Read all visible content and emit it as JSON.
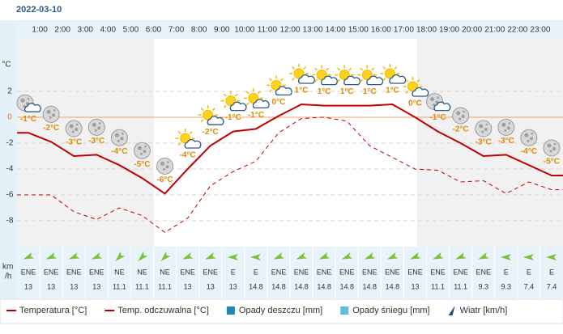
{
  "chart_data": {
    "type": "line",
    "title": "2022-03-10",
    "categories": [
      null,
      "1:00",
      "2:00",
      "3:00",
      "4:00",
      "5:00",
      "6:00",
      "7:00",
      "8:00",
      "9:00",
      "10:00",
      "11:00",
      "12:00",
      "13:00",
      "14:00",
      "15:00",
      "16:00",
      "17:00",
      "18:00",
      "19:00",
      "20:00",
      "21:00",
      "22:00",
      "23:00"
    ],
    "icons": [
      "moon-cloud",
      "moon",
      "moon",
      "moon",
      "moon",
      "moon",
      "moon",
      "sun-cloud",
      "sun-cloud",
      "sun-cloud",
      "sun-cloud",
      "sun-cloud",
      "sun-cloud",
      "sun-cloud",
      "sun-cloud",
      "sun-cloud",
      "sun-cloud",
      "sun-cloud",
      "moon-cloud",
      "moon",
      "moon",
      "moon",
      "moon",
      "moon"
    ],
    "series": [
      {
        "name": "Temperatura [°C]",
        "color": "#c00000",
        "values": [
          -1.2,
          -1.9,
          -3.0,
          -2.9,
          -3.7,
          -4.7,
          -5.9,
          -4.0,
          -2.2,
          -1.1,
          -0.9,
          0.1,
          1.0,
          0.9,
          0.9,
          0.9,
          1.0,
          0.0,
          -1.1,
          -2.0,
          -3.0,
          -2.9,
          -3.7,
          -4.5
        ],
        "value_labels": [
          "-1°C",
          "-2°C",
          "-3°C",
          "-3°C",
          "-4°C",
          "-5°C",
          "-6°C",
          "-4°C",
          "-2°C",
          "-1°C",
          "-1°C",
          "0°C",
          "1°C",
          "1°C",
          "1°C",
          "1°C",
          "1°C",
          "0°C",
          "-1°C",
          "-2°C",
          "-3°C",
          "-3°C",
          "-4°C",
          "-5°C"
        ]
      },
      {
        "name": "Temp. odczuwalna [°C]",
        "color": "#c00000",
        "dashed": true,
        "values": [
          -6.0,
          -6.0,
          -7.3,
          -7.9,
          -7.0,
          -7.6,
          -8.9,
          -7.8,
          -5.3,
          -4.2,
          -3.4,
          -1.2,
          -0.1,
          0.0,
          -0.3,
          -2.2,
          -3.1,
          -4.0,
          -4.1,
          -5.0,
          -4.9,
          -5.9,
          -5.0,
          -5.6
        ]
      }
    ],
    "legend_extra": [
      {
        "name": "Opady deszczu [mm]",
        "color": "#1a8ab8"
      },
      {
        "name": "Opady śniegu [mm]",
        "color": "#5cbcdc"
      },
      {
        "name": "Wiatr [km/h]",
        "color": "#2a4a6a"
      }
    ],
    "y_unit": "°C",
    "ylim": [
      -10,
      7.5
    ],
    "yticks": [
      -8,
      -6,
      -4,
      -2,
      0,
      2
    ],
    "grid": true,
    "wind": {
      "unit": [
        "km",
        "/h"
      ],
      "directions": [
        "ENE",
        "ENE",
        "ENE",
        "ENE",
        "NE",
        "NE",
        "NE",
        "ENE",
        "ENE",
        "E",
        "E",
        "ENE",
        "ENE",
        "ENE",
        "ENE",
        "ENE",
        "ENE",
        "ENE",
        "ENE",
        "ENE",
        "ENE",
        "E",
        "E",
        "E"
      ],
      "speeds": [
        "13",
        "13",
        "13",
        "13",
        "11.1",
        "11.1",
        "11.1",
        "13",
        "13",
        "13",
        "14.8",
        "14.8",
        "14.8",
        "14.8",
        "14.8",
        "14.8",
        "14.8",
        "13",
        "11.1",
        "11.1",
        "9.3",
        "9.3",
        "7.4",
        "7.4"
      ]
    }
  }
}
